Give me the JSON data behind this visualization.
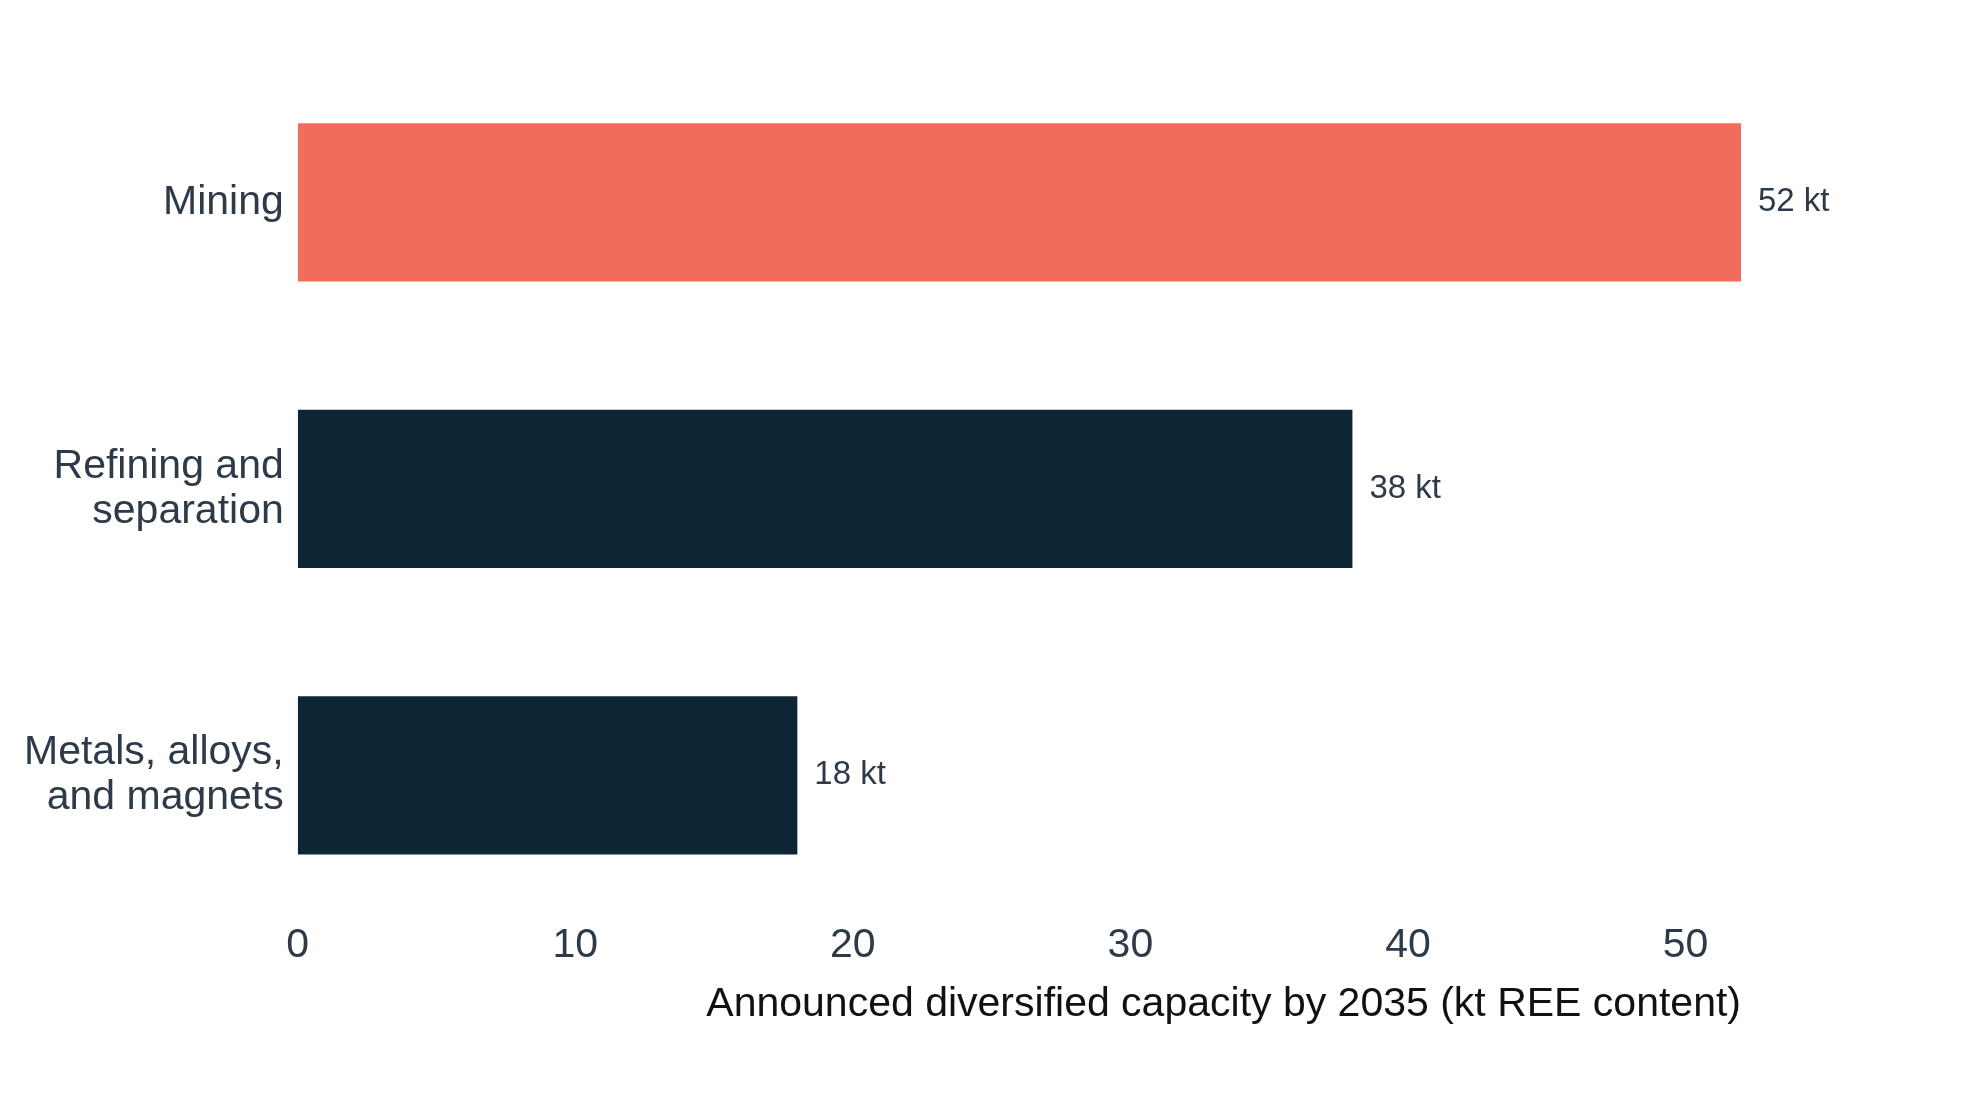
{
  "chart_data": {
    "type": "bar",
    "orientation": "horizontal",
    "xlabel": "Announced diversified capacity by 2035 (kt REE content)",
    "categories": [
      "Mining",
      "Refining and separation",
      "Metals, alloys, and magnets"
    ],
    "values": [
      52,
      38,
      18
    ],
    "colors": [
      "#f26c5c",
      "#0d2636",
      "#0d2636"
    ],
    "value_labels": [
      "52 kt",
      "38 kt",
      "18 kt"
    ],
    "xlim": [
      0,
      52
    ],
    "xticks": [
      0,
      10,
      20,
      30,
      40,
      50
    ],
    "grid": false,
    "legend": false
  }
}
